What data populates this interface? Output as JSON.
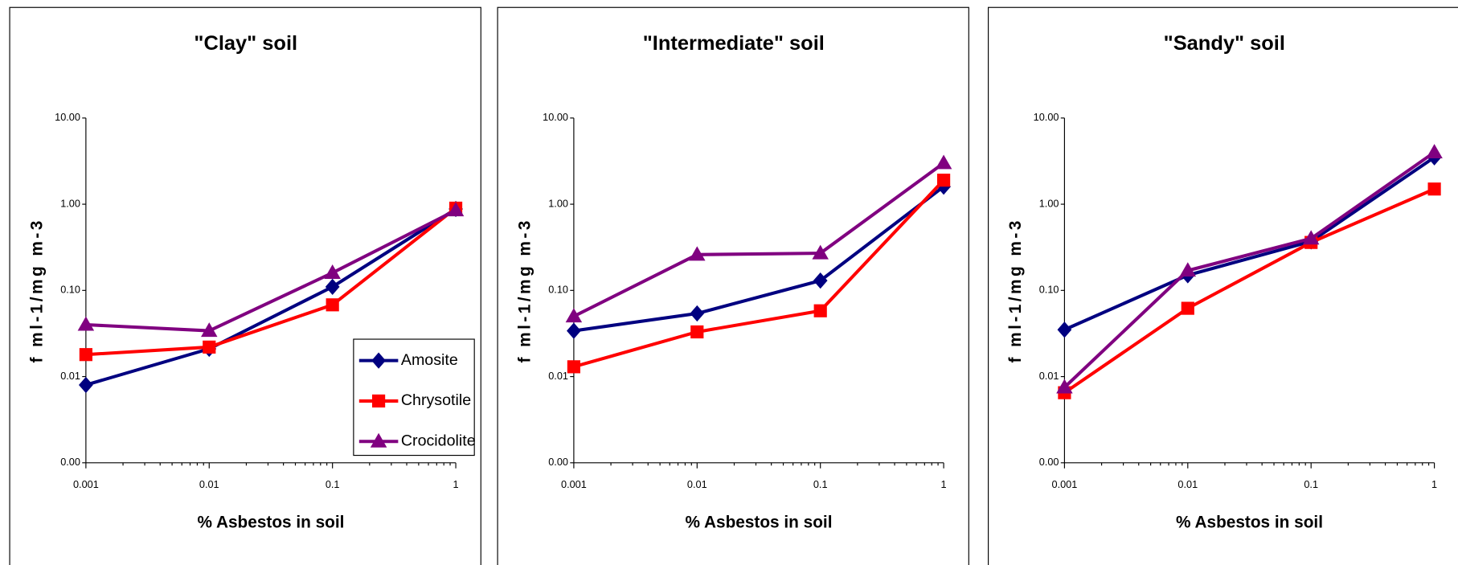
{
  "chart_data": [
    {
      "type": "line",
      "title": "\"Clay\" soil",
      "x_label": "% Asbestos in soil",
      "y_label": "f ml-1/mg m-3",
      "x": [
        0.001,
        0.01,
        0.1,
        1
      ],
      "xlim": [
        0.001,
        1
      ],
      "xticks": [
        0.001,
        0.01,
        0.1,
        1
      ],
      "xlog": true,
      "ylim": [
        0.001,
        10
      ],
      "ylog": true,
      "yticks": [
        {
          "value": 0.001,
          "label": "0.00"
        },
        {
          "value": 0.01,
          "label": "0.01"
        },
        {
          "value": 0.1,
          "label": "0.10"
        },
        {
          "value": 1,
          "label": "1.00"
        },
        {
          "value": 10,
          "label": "10.00"
        }
      ],
      "legend": "lower right",
      "series": [
        {
          "name": "Amosite",
          "color": "#000080",
          "marker": "diamond",
          "values": [
            0.008,
            0.021,
            0.11,
            0.88
          ]
        },
        {
          "name": "Chrysotile",
          "color": "#ff0000",
          "marker": "square",
          "values": [
            0.018,
            0.022,
            0.068,
            0.9
          ]
        },
        {
          "name": "Crocidolite",
          "color": "#800080",
          "marker": "triangle",
          "values": [
            0.04,
            0.034,
            0.16,
            0.85
          ]
        }
      ]
    },
    {
      "type": "line",
      "title": "\"Intermediate\" soil",
      "x_label": "% Asbestos in soil",
      "y_label": "f ml-1/mg m-3",
      "x": [
        0.001,
        0.01,
        0.1,
        1
      ],
      "xlim": [
        0.001,
        1
      ],
      "xticks": [
        0.001,
        0.01,
        0.1,
        1
      ],
      "xlog": true,
      "ylim": [
        0.001,
        10
      ],
      "ylog": true,
      "yticks": [
        {
          "value": 0.001,
          "label": "0.00"
        },
        {
          "value": 0.01,
          "label": "0.01"
        },
        {
          "value": 0.1,
          "label": "0.10"
        },
        {
          "value": 1,
          "label": "1.00"
        },
        {
          "value": 10,
          "label": "10.00"
        }
      ],
      "series": [
        {
          "name": "Amosite",
          "color": "#000080",
          "marker": "diamond",
          "values": [
            0.034,
            0.054,
            0.13,
            1.6
          ]
        },
        {
          "name": "Chrysotile",
          "color": "#ff0000",
          "marker": "square",
          "values": [
            0.013,
            0.033,
            0.058,
            1.9
          ]
        },
        {
          "name": "Crocidolite",
          "color": "#800080",
          "marker": "triangle",
          "values": [
            0.05,
            0.26,
            0.27,
            3.0
          ]
        }
      ]
    },
    {
      "type": "line",
      "title": "\"Sandy\" soil",
      "x_label": "% Asbestos in soil",
      "y_label": "f ml-1/mg m-3",
      "x": [
        0.001,
        0.01,
        0.1,
        1
      ],
      "xlim": [
        0.001,
        1
      ],
      "xticks": [
        0.001,
        0.01,
        0.1,
        1
      ],
      "xlog": true,
      "ylim": [
        0.001,
        10
      ],
      "ylog": true,
      "yticks": [
        {
          "value": 0.001,
          "label": "0.00"
        },
        {
          "value": 0.01,
          "label": "0.01"
        },
        {
          "value": 0.1,
          "label": "0.10"
        },
        {
          "value": 1,
          "label": "1.00"
        },
        {
          "value": 10,
          "label": "10.00"
        }
      ],
      "series": [
        {
          "name": "Amosite",
          "color": "#000080",
          "marker": "diamond",
          "values": [
            0.035,
            0.15,
            0.37,
            3.5
          ]
        },
        {
          "name": "Chrysotile",
          "color": "#ff0000",
          "marker": "square",
          "values": [
            0.0065,
            0.062,
            0.36,
            1.5
          ]
        },
        {
          "name": "Crocidolite",
          "color": "#800080",
          "marker": "triangle",
          "values": [
            0.0075,
            0.17,
            0.4,
            4.0
          ]
        }
      ]
    }
  ]
}
